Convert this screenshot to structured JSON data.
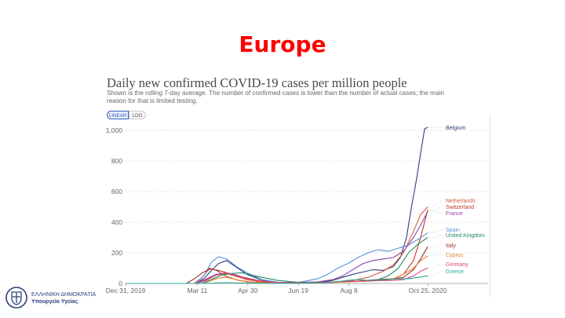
{
  "slide": {
    "title": "Europe",
    "footer_line1": "ΕΛΛΗΝΙΚΗ ΔΗΜΟΚΡΑΤΙΑ",
    "footer_line2": "Υπουργείο Υγείας"
  },
  "controls": {
    "linear": "LINEAR",
    "log": "LOG",
    "active": "linear"
  },
  "chart_data": {
    "type": "line",
    "title": "Daily new confirmed COVID-19 cases per million people",
    "subtitle": "Shown is the rolling 7-day average. The number of confirmed cases is lower than the number of actual cases; the main reason for that is limited testing.",
    "xlabel": "",
    "ylabel": "",
    "x_start": "2019-12-31",
    "x_end": "2020-10-25",
    "ylim": [
      0,
      1000
    ],
    "yticks": [
      0,
      200,
      400,
      600,
      800,
      1000
    ],
    "ytick_labels": [
      "0",
      "200",
      "400",
      "600",
      "800",
      "1,000"
    ],
    "xticks": [
      0,
      71,
      121,
      171,
      221,
      299
    ],
    "xtick_labels": [
      "Dec 31, 2019",
      "Mar 11",
      "Apr 30",
      "Jun 19",
      "Aug 8",
      "Oct 25, 2020"
    ],
    "grid": true,
    "series": [
      {
        "name": "Belgium",
        "color": "#2f3f7a",
        "x": [
          0,
          70,
          78,
          85,
          92,
          100,
          110,
          120,
          135,
          150,
          170,
          190,
          205,
          215,
          225,
          235,
          245,
          255,
          265,
          272,
          278,
          283,
          288,
          292,
          296,
          299
        ],
        "y": [
          0,
          0,
          35,
          85,
          130,
          150,
          105,
          60,
          22,
          8,
          5,
          6,
          20,
          40,
          60,
          75,
          90,
          85,
          110,
          170,
          300,
          500,
          680,
          850,
          1010,
          1020
        ]
      },
      {
        "name": "Netherlands",
        "color": "#d45a3c",
        "x": [
          0,
          70,
          80,
          90,
          100,
          110,
          120,
          135,
          150,
          170,
          190,
          210,
          225,
          240,
          255,
          265,
          275,
          285,
          292,
          299
        ],
        "y": [
          0,
          0,
          25,
          55,
          65,
          45,
          25,
          8,
          4,
          3,
          5,
          10,
          20,
          40,
          80,
          120,
          200,
          340,
          450,
          500
        ]
      },
      {
        "name": "Switzerland",
        "color": "#c0392b",
        "x": [
          0,
          68,
          76,
          83,
          90,
          100,
          112,
          125,
          150,
          170,
          190,
          210,
          230,
          250,
          265,
          275,
          285,
          292,
          299
        ],
        "y": [
          0,
          0,
          40,
          100,
          85,
          45,
          20,
          8,
          3,
          2,
          6,
          10,
          15,
          20,
          30,
          60,
          150,
          300,
          480
        ]
      },
      {
        "name": "France",
        "color": "#8e44ad",
        "x": [
          0,
          70,
          80,
          90,
          100,
          110,
          120,
          135,
          150,
          170,
          190,
          205,
          215,
          225,
          235,
          245,
          255,
          265,
          275,
          285,
          292,
          299
        ],
        "y": [
          0,
          0,
          30,
          60,
          70,
          55,
          30,
          15,
          8,
          6,
          10,
          25,
          50,
          90,
          130,
          150,
          160,
          170,
          210,
          300,
          380,
          470
        ]
      },
      {
        "name": "Spain",
        "color": "#5b8fd6",
        "x": [
          0,
          70,
          78,
          85,
          92,
          100,
          110,
          120,
          135,
          150,
          170,
          190,
          200,
          210,
          220,
          230,
          240,
          250,
          260,
          270,
          280,
          290,
          299
        ],
        "y": [
          0,
          0,
          55,
          140,
          175,
          160,
          110,
          70,
          25,
          8,
          5,
          30,
          60,
          100,
          130,
          170,
          200,
          220,
          210,
          230,
          250,
          290,
          330
        ]
      },
      {
        "name": "United Kingdom",
        "color": "#1e8a5a",
        "x": [
          0,
          75,
          85,
          95,
          105,
          115,
          125,
          135,
          150,
          170,
          190,
          210,
          230,
          250,
          260,
          270,
          280,
          290,
          299
        ],
        "y": [
          0,
          0,
          25,
          55,
          65,
          70,
          55,
          40,
          20,
          8,
          8,
          10,
          15,
          25,
          50,
          100,
          200,
          260,
          300
        ]
      },
      {
        "name": "Italy",
        "color": "#a03232",
        "x": [
          0,
          60,
          68,
          76,
          84,
          92,
          100,
          110,
          120,
          135,
          150,
          170,
          190,
          210,
          230,
          250,
          265,
          275,
          285,
          292,
          299
        ],
        "y": [
          0,
          0,
          30,
          70,
          95,
          85,
          70,
          50,
          35,
          15,
          5,
          4,
          5,
          8,
          15,
          25,
          30,
          40,
          90,
          160,
          240
        ]
      },
      {
        "name": "Cyprus",
        "color": "#e67e22",
        "x": [
          0,
          78,
          85,
          92,
          100,
          110,
          120,
          140,
          160,
          180,
          200,
          220,
          240,
          255,
          265,
          275,
          285,
          292,
          299
        ],
        "y": [
          0,
          0,
          20,
          35,
          40,
          25,
          10,
          4,
          3,
          3,
          5,
          10,
          15,
          20,
          30,
          60,
          100,
          150,
          180
        ]
      },
      {
        "name": "Germany",
        "color": "#e0457b",
        "x": [
          0,
          70,
          80,
          90,
          100,
          110,
          120,
          135,
          150,
          170,
          190,
          210,
          230,
          250,
          265,
          275,
          285,
          292,
          299
        ],
        "y": [
          0,
          0,
          20,
          55,
          70,
          50,
          30,
          15,
          6,
          5,
          6,
          12,
          15,
          18,
          20,
          25,
          50,
          80,
          100
        ]
      },
      {
        "name": "Greece",
        "color": "#27a89a",
        "x": [
          0,
          80,
          90,
          100,
          110,
          120,
          140,
          160,
          180,
          200,
          210,
          220,
          230,
          240,
          250,
          260,
          270,
          280,
          290,
          299
        ],
        "y": [
          0,
          0,
          3,
          5,
          3,
          2,
          1,
          1,
          2,
          5,
          12,
          20,
          25,
          20,
          22,
          25,
          30,
          30,
          40,
          50
        ]
      }
    ]
  }
}
